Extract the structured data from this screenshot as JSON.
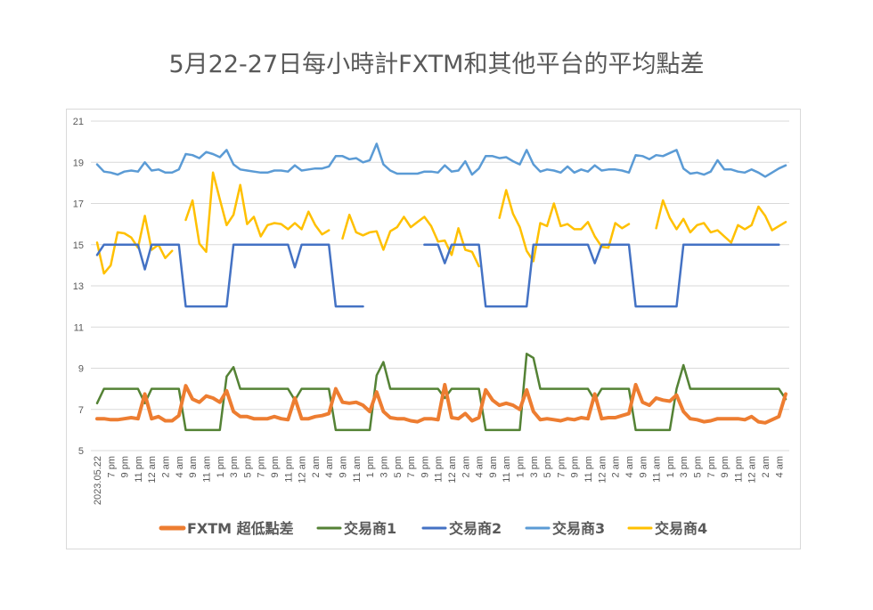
{
  "chart_data": {
    "type": "line",
    "title": "5月22-27日每小時計FXTM和其他平台的平均點差",
    "xlabel": "",
    "ylabel": "",
    "ylim": [
      5,
      21
    ],
    "yticks": [
      5,
      7,
      9,
      11,
      13,
      15,
      17,
      19,
      21
    ],
    "grid": true,
    "legend_position": "bottom",
    "x_tick_labels": [
      "2023.05.22",
      "7 pm",
      "9 pm",
      "11 pm",
      "12 am",
      "2 am",
      "4 am",
      "9 am",
      "11 am",
      "1 pm",
      "3 pm",
      "5 pm",
      "7 pm",
      "9 pm",
      "11 pm",
      "12 am",
      "2 am",
      "4 am",
      "9 am",
      "11 am",
      "1 pm",
      "3 pm",
      "5 pm",
      "7 pm",
      "9 pm",
      "11 pm",
      "12 am",
      "2 am",
      "4 am",
      "9 am",
      "11 am",
      "1 pm",
      "3 pm",
      "5 pm",
      "7 pm",
      "9 pm",
      "11 pm",
      "12 am",
      "2 am",
      "4 am",
      "9 am",
      "11 am",
      "1 pm",
      "3 pm",
      "5 pm",
      "7 pm",
      "9 pm",
      "11 pm",
      "12 am",
      "2 am",
      "4 am"
    ],
    "series": [
      {
        "name": "FXTM  超低點差",
        "color": "#ED7D31",
        "values": [
          6.55,
          6.55,
          6.5,
          6.5,
          6.55,
          6.6,
          6.55,
          7.75,
          6.55,
          6.65,
          6.45,
          6.45,
          6.7,
          8.15,
          7.5,
          7.35,
          7.65,
          7.55,
          7.35,
          7.9,
          6.9,
          6.65,
          6.65,
          6.55,
          6.55,
          6.55,
          6.65,
          6.55,
          6.5,
          7.55,
          6.55,
          6.55,
          6.65,
          6.7,
          6.8,
          8.0,
          7.35,
          7.3,
          7.35,
          7.2,
          6.9,
          7.85,
          6.9,
          6.6,
          6.55,
          6.55,
          6.45,
          6.4,
          6.55,
          6.55,
          6.5,
          8.2,
          6.6,
          6.55,
          6.8,
          6.45,
          6.6,
          7.95,
          7.45,
          7.2,
          7.3,
          7.2,
          7.0,
          7.95,
          6.9,
          6.5,
          6.55,
          6.5,
          6.45,
          6.55,
          6.5,
          6.6,
          6.55,
          7.75,
          6.55,
          6.6,
          6.6,
          6.7,
          6.8,
          8.2,
          7.35,
          7.2,
          7.55,
          7.45,
          7.4,
          7.7,
          6.9,
          6.55,
          6.5,
          6.4,
          6.45,
          6.55,
          6.55,
          6.55,
          6.55,
          6.5,
          6.65,
          6.4,
          6.35,
          6.5,
          6.65,
          7.75
        ]
      },
      {
        "name": "交易商1",
        "color": "#548235",
        "values": [
          7.3,
          8,
          8,
          8,
          8,
          8,
          8,
          7.3,
          8,
          8,
          8,
          8,
          8,
          6,
          6,
          6,
          6,
          6,
          6,
          8.6,
          9.05,
          8,
          8,
          8,
          8,
          8,
          8,
          8,
          8,
          7.45,
          8,
          8,
          8,
          8,
          8,
          6,
          6,
          6,
          6,
          6,
          6,
          8.65,
          9.3,
          8,
          8,
          8,
          8,
          8,
          8,
          8,
          8,
          7.55,
          8,
          8,
          8,
          8,
          8,
          6,
          6,
          6,
          6,
          6,
          6,
          9.7,
          9.5,
          8,
          8,
          8,
          8,
          8,
          8,
          8,
          8,
          7.45,
          8,
          8,
          8,
          8,
          8,
          6,
          6,
          6,
          6,
          6,
          6,
          8.0,
          9.15,
          8,
          8,
          8,
          8,
          8,
          8,
          8,
          8,
          8,
          8,
          8,
          8,
          8,
          8,
          7.5
        ]
      },
      {
        "name": "交易商2",
        "color": "#4472C4",
        "values": [
          14.5,
          15,
          15,
          15,
          15,
          15,
          15,
          13.8,
          15,
          15,
          15,
          15,
          15,
          12,
          12,
          12,
          12,
          12,
          12,
          12,
          15,
          15,
          15,
          15,
          15,
          15,
          15,
          15,
          15,
          13.9,
          15,
          15,
          15,
          15,
          15,
          12,
          12,
          12,
          12,
          12,
          null,
          null,
          null,
          null,
          null,
          null,
          null,
          null,
          15,
          15,
          15,
          14.1,
          15,
          15,
          15,
          15,
          15,
          12,
          12,
          12,
          12,
          12,
          12,
          12,
          15,
          15,
          15,
          15,
          15,
          15,
          15,
          15,
          15,
          14.1,
          15,
          15,
          15,
          15,
          15,
          12,
          12,
          12,
          12,
          12,
          12,
          12,
          15,
          15,
          15,
          15,
          15,
          15,
          15,
          15,
          15,
          15,
          15,
          15,
          15,
          15,
          15,
          null
        ]
      },
      {
        "name": "交易商3",
        "color": "#5B9BD5",
        "values": [
          18.9,
          18.55,
          18.5,
          18.4,
          18.55,
          18.6,
          18.55,
          19.0,
          18.6,
          18.65,
          18.5,
          18.5,
          18.65,
          19.4,
          19.35,
          19.2,
          19.5,
          19.4,
          19.25,
          19.6,
          18.9,
          18.65,
          18.6,
          18.55,
          18.5,
          18.5,
          18.6,
          18.6,
          18.55,
          18.85,
          18.6,
          18.65,
          18.7,
          18.7,
          18.8,
          19.3,
          19.3,
          19.15,
          19.2,
          19.0,
          19.1,
          19.9,
          18.9,
          18.6,
          18.45,
          18.45,
          18.45,
          18.45,
          18.55,
          18.55,
          18.5,
          18.85,
          18.55,
          18.6,
          19.05,
          18.4,
          18.7,
          19.3,
          19.3,
          19.2,
          19.25,
          19.05,
          18.9,
          19.6,
          18.9,
          18.55,
          18.65,
          18.6,
          18.5,
          18.8,
          18.5,
          18.65,
          18.55,
          18.85,
          18.6,
          18.65,
          18.65,
          18.6,
          18.5,
          19.35,
          19.3,
          19.15,
          19.35,
          19.3,
          19.45,
          19.6,
          18.7,
          18.45,
          18.5,
          18.4,
          18.55,
          19.1,
          18.65,
          18.65,
          18.55,
          18.5,
          18.65,
          18.5,
          18.3,
          18.5,
          18.7,
          18.85
        ]
      },
      {
        "name": "交易商4",
        "color": "#FFC000",
        "values": [
          15.1,
          13.6,
          14.0,
          15.6,
          15.55,
          15.35,
          14.85,
          16.4,
          14.75,
          15.0,
          14.35,
          14.7,
          null,
          16.2,
          17.15,
          15.05,
          14.65,
          18.5,
          17.2,
          15.95,
          16.45,
          17.9,
          16.0,
          16.35,
          15.4,
          15.95,
          16.05,
          16.0,
          15.75,
          16.05,
          15.75,
          16.6,
          15.95,
          15.5,
          15.7,
          null,
          15.3,
          16.45,
          15.6,
          15.45,
          15.6,
          15.65,
          14.75,
          15.65,
          15.85,
          16.35,
          15.85,
          16.1,
          16.35,
          15.9,
          15.15,
          15.2,
          14.5,
          15.8,
          14.75,
          14.65,
          13.95,
          null,
          null,
          16.3,
          17.65,
          16.5,
          15.85,
          14.7,
          14.2,
          16.05,
          15.9,
          17.0,
          15.9,
          16.0,
          15.75,
          15.75,
          16.1,
          15.4,
          14.9,
          14.85,
          16.05,
          15.8,
          16.0,
          null,
          null,
          null,
          15.8,
          17.15,
          16.3,
          15.75,
          16.25,
          15.6,
          15.95,
          16.05,
          15.6,
          15.7,
          15.4,
          15.1,
          15.95,
          15.75,
          15.95,
          16.85,
          16.4,
          15.7,
          15.9,
          16.1
        ]
      }
    ]
  }
}
